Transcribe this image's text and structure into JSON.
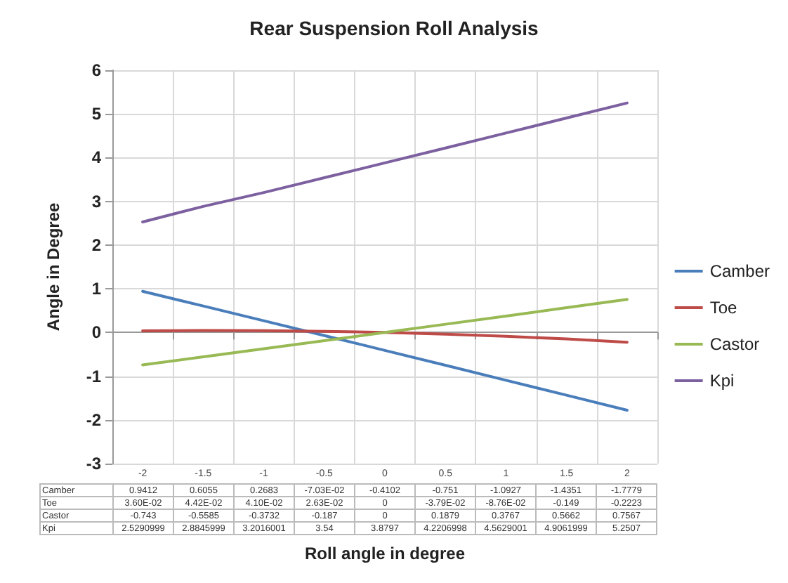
{
  "chart_data": {
    "type": "line",
    "title": "Rear Suspension Roll Analysis",
    "xlabel": "Roll angle in degree",
    "ylabel": "Angle in Degree",
    "categories": [
      "-2",
      "-1.5",
      "-1",
      "-0.5",
      "0",
      "0.5",
      "1",
      "1.5",
      "2"
    ],
    "series": [
      {
        "name": "Camber",
        "color": "#4a7ebb",
        "values": [
          0.9412,
          0.6055,
          0.2683,
          -0.0703,
          -0.4102,
          -0.751,
          -1.0927,
          -1.4351,
          -1.7779
        ],
        "value_labels": [
          "0.9412",
          "0.6055",
          "0.2683",
          "-7.03E-02",
          "-0.4102",
          "-0.751",
          "-1.0927",
          "-1.4351",
          "-1.7779"
        ]
      },
      {
        "name": "Toe",
        "color": "#be4b48",
        "values": [
          0.036,
          0.0442,
          0.041,
          0.0263,
          0,
          -0.0379,
          -0.0876,
          -0.149,
          -0.2223
        ],
        "value_labels": [
          "3.60E-02",
          "4.42E-02",
          "4.10E-02",
          "2.63E-02",
          "0",
          "-3.79E-02",
          "-8.76E-02",
          "-0.149",
          "-0.2223"
        ]
      },
      {
        "name": "Castor",
        "color": "#98b954",
        "values": [
          -0.743,
          -0.5585,
          -0.3732,
          -0.187,
          0,
          0.1879,
          0.3767,
          0.5662,
          0.7567
        ],
        "value_labels": [
          "-0.743",
          "-0.5585",
          "-0.3732",
          "-0.187",
          "0",
          "0.1879",
          "0.3767",
          "0.5662",
          "0.7567"
        ]
      },
      {
        "name": "Kpi",
        "color": "#7d60a0",
        "values": [
          2.5290999,
          2.8845999,
          3.2016001,
          3.54,
          3.8797,
          4.2206998,
          4.5629001,
          4.9061999,
          5.2507
        ],
        "value_labels": [
          "2.5290999",
          "2.8845999",
          "3.2016001",
          "3.54",
          "3.8797",
          "4.2206998",
          "4.5629001",
          "4.9061999",
          "5.2507"
        ]
      }
    ],
    "ylim": [
      -3,
      6
    ],
    "yticks": [
      -3,
      -2,
      -1,
      0,
      1,
      2,
      3,
      4,
      5,
      6
    ],
    "grid": true,
    "legend": "right",
    "marker": "none",
    "line_style": "solid"
  }
}
